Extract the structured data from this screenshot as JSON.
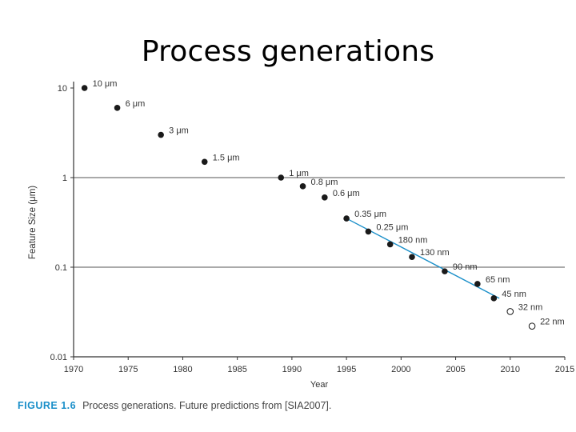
{
  "slide": {
    "title": "Process generations"
  },
  "chart_data": {
    "type": "scatter",
    "xlabel": "Year",
    "ylabel": "Feature Size (μm)",
    "xlim": [
      1970,
      2015
    ],
    "ylim": [
      0.01,
      10
    ],
    "yscale": "log",
    "x_ticks": [
      1970,
      1975,
      1980,
      1985,
      1990,
      1995,
      2000,
      2005,
      2010,
      2015
    ],
    "y_ticks": [
      {
        "value": 10,
        "label": "10"
      },
      {
        "value": 1,
        "label": "1"
      },
      {
        "value": 0.1,
        "label": "0.1"
      },
      {
        "value": 0.01,
        "label": "0.01"
      }
    ],
    "gridlines_y": [
      1,
      0.1
    ],
    "series": [
      {
        "name": "Process generations",
        "points": [
          {
            "year": 1971,
            "size": 10,
            "label": "10 μm",
            "predicted": false
          },
          {
            "year": 1974,
            "size": 6,
            "label": "6 μm",
            "predicted": false
          },
          {
            "year": 1978,
            "size": 3,
            "label": "3 μm",
            "predicted": false
          },
          {
            "year": 1982,
            "size": 1.5,
            "label": "1.5 μm",
            "predicted": false
          },
          {
            "year": 1989,
            "size": 1,
            "label": "1 μm",
            "predicted": false
          },
          {
            "year": 1991,
            "size": 0.8,
            "label": "0.8 μm",
            "predicted": false
          },
          {
            "year": 1993,
            "size": 0.6,
            "label": "0.6 μm",
            "predicted": false
          },
          {
            "year": 1995,
            "size": 0.35,
            "label": "0.35 μm",
            "predicted": false
          },
          {
            "year": 1997,
            "size": 0.25,
            "label": "0.25 μm",
            "predicted": false
          },
          {
            "year": 1999,
            "size": 0.18,
            "label": "180 nm",
            "predicted": false
          },
          {
            "year": 2001,
            "size": 0.13,
            "label": "130 nm",
            "predicted": false
          },
          {
            "year": 2004,
            "size": 0.09,
            "label": "90 nm",
            "predicted": false
          },
          {
            "year": 2007,
            "size": 0.065,
            "label": "65 nm",
            "predicted": false
          },
          {
            "year": 2008.5,
            "size": 0.045,
            "label": "45 nm",
            "predicted": false
          },
          {
            "year": 2010,
            "size": 0.032,
            "label": "32 nm",
            "predicted": true
          },
          {
            "year": 2012,
            "size": 0.022,
            "label": "22 nm",
            "predicted": true
          }
        ]
      }
    ],
    "trend_line": {
      "from_year": 1995,
      "from_size": 0.35,
      "to_year": 2009,
      "to_size": 0.045,
      "color": "#1a8fc9"
    },
    "colors": {
      "point": "#1a1a1a",
      "grid": "#555555",
      "trend": "#1a8fc9",
      "caption_label": "#1a8fc9"
    }
  },
  "caption": {
    "figure_label": "FIGURE 1.6",
    "text": "Process generations. Future predictions from [SIA2007]."
  }
}
